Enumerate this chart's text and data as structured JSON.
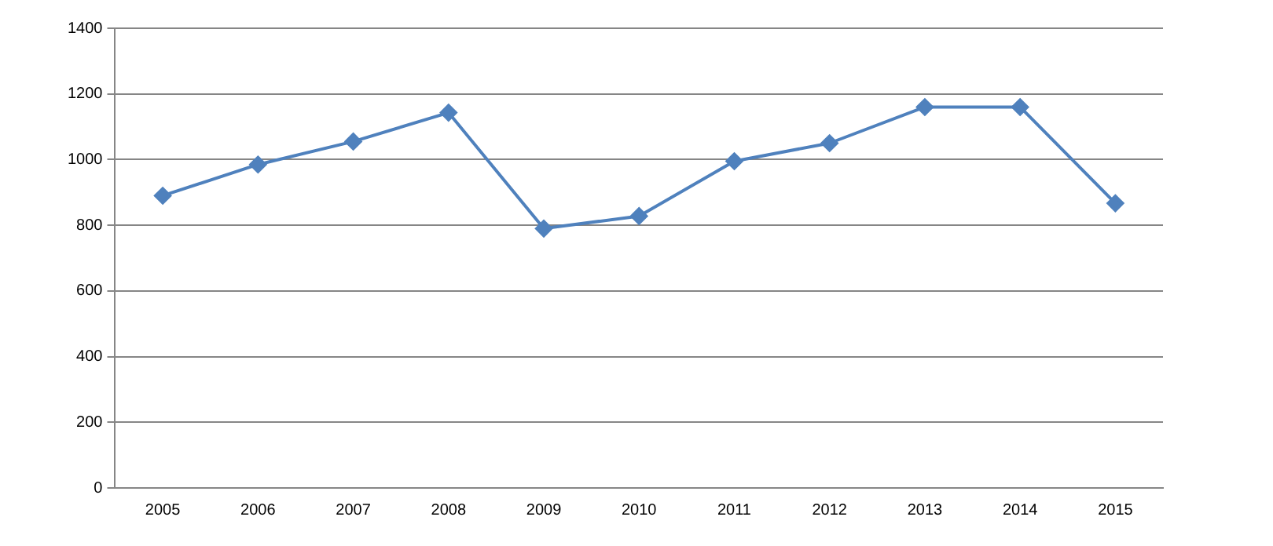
{
  "chart_data": {
    "type": "line",
    "categories": [
      "2005",
      "2006",
      "2007",
      "2008",
      "2009",
      "2010",
      "2011",
      "2012",
      "2013",
      "2014",
      "2015"
    ],
    "series": [
      {
        "color": "#4f81bd",
        "values": [
          890,
          985,
          1055,
          1143,
          790,
          828,
          995,
          1050,
          1160,
          1160,
          867
        ]
      }
    ],
    "ylim": [
      0,
      1400
    ],
    "yticks": [
      0,
      200,
      400,
      600,
      800,
      1000,
      1200,
      1400
    ],
    "grid": "y",
    "legend": false,
    "marker": "diamond",
    "line_style": "solid"
  }
}
